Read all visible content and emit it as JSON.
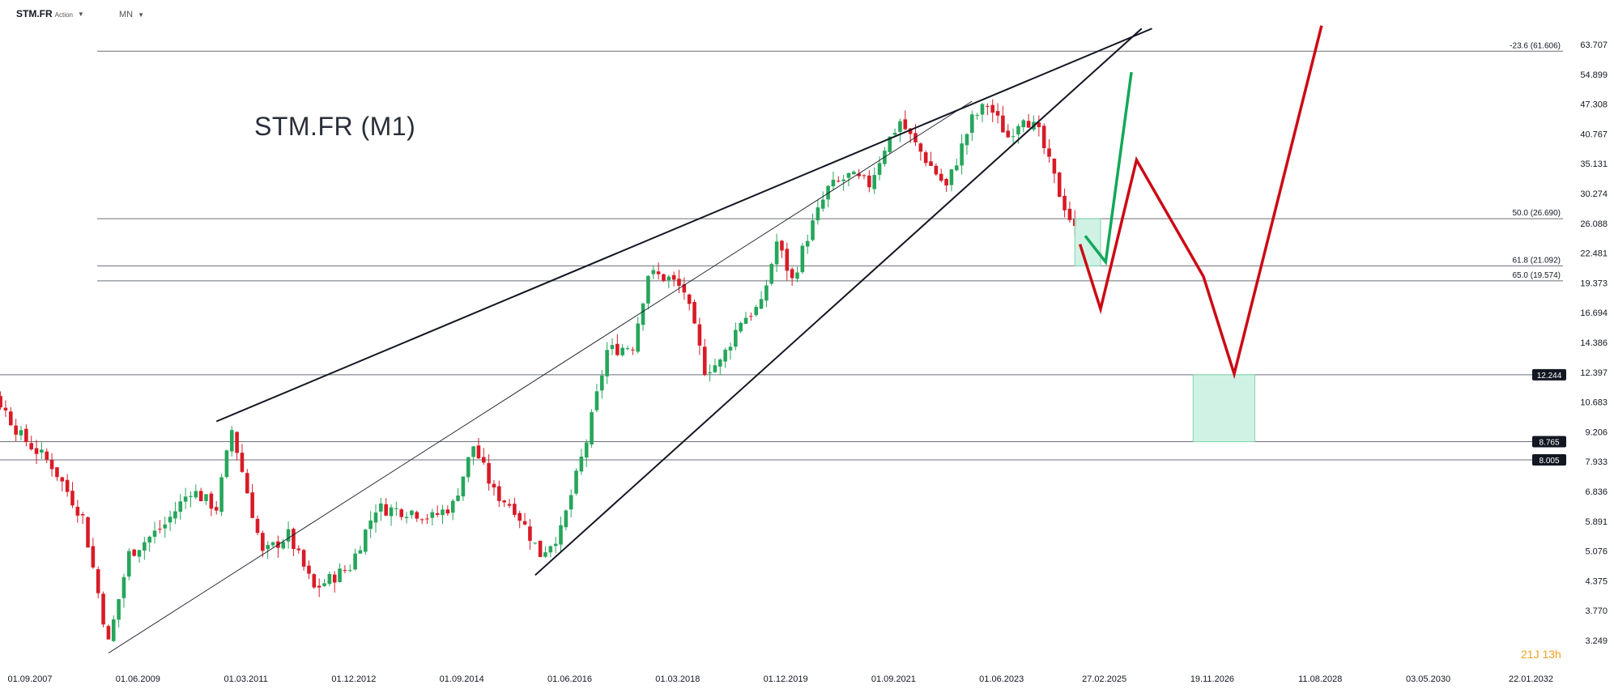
{
  "header": {
    "symbol": "STM.FR",
    "symbol_type": "Action",
    "interval": "MN"
  },
  "chart_title": "STM.FR (M1)",
  "countdown": "21J 13h",
  "colors": {
    "up": "#26a65b",
    "down": "#d81b27",
    "zone": "#c8f0e0",
    "zone_border": "#7fd6b0",
    "trend": "#131722",
    "projection_up": "#12a85a",
    "projection_down": "#cc0a14",
    "tag_bg": "#131722"
  },
  "chart_data": {
    "type": "candlestick",
    "y_scale": "log",
    "ylim": [
      3.0,
      72.0
    ],
    "x_tick_labels": [
      "01.09.2007",
      "01.06.2009",
      "01.03.2011",
      "01.12.2012",
      "01.09.2014",
      "01.06.2016",
      "01.03.2018",
      "01.12.2019",
      "01.09.2021",
      "01.06.2023",
      "27.02.2025",
      "19.11.2026",
      "11.08.2028",
      "03.05.2030",
      "22.01.2032"
    ],
    "y_tick_labels": [
      "63.707",
      "54.899",
      "47.308",
      "40.767",
      "35.131",
      "30.274",
      "26.088",
      "22.481",
      "19.373",
      "16.694",
      "14.386",
      "12.397",
      "10.683",
      "9.206",
      "7.933",
      "6.836",
      "5.891",
      "5.076",
      "4.375",
      "3.770",
      "3.249"
    ],
    "levels": [
      {
        "value": 61.606,
        "label": "-23.6 (61.606)",
        "kind": "fib"
      },
      {
        "value": 26.69,
        "label": "50.0 (26.690)",
        "kind": "fib"
      },
      {
        "value": 21.092,
        "label": "61.8 (21.092)",
        "kind": "fib"
      },
      {
        "value": 19.574,
        "label": "65.0 (19.574)",
        "kind": "fib"
      },
      {
        "value": 12.244,
        "label": "12.244",
        "kind": "tag"
      },
      {
        "value": 8.765,
        "label": "8.765",
        "kind": "tag"
      },
      {
        "value": 8.005,
        "label": "8.005",
        "kind": "tag"
      }
    ],
    "close_anchors": [
      [
        "2006-06",
        12.6
      ],
      [
        "2007-03",
        11.5
      ],
      [
        "2007-09",
        9.0
      ],
      [
        "2008-03",
        7.8
      ],
      [
        "2008-09",
        6.0
      ],
      [
        "2009-02",
        3.2
      ],
      [
        "2009-06",
        5.0
      ],
      [
        "2010-01",
        5.8
      ],
      [
        "2010-06",
        6.9
      ],
      [
        "2010-11",
        6.3
      ],
      [
        "2011-02",
        9.3
      ],
      [
        "2011-08",
        5.0
      ],
      [
        "2012-01",
        5.5
      ],
      [
        "2012-06",
        4.2
      ],
      [
        "2013-01",
        4.7
      ],
      [
        "2013-06",
        6.3
      ],
      [
        "2014-01",
        6.2
      ],
      [
        "2014-05",
        6.0
      ],
      [
        "2014-09",
        6.4
      ],
      [
        "2015-01",
        8.6
      ],
      [
        "2015-05",
        6.8
      ],
      [
        "2015-09",
        6.3
      ],
      [
        "2016-02",
        5.0
      ],
      [
        "2016-06",
        5.6
      ],
      [
        "2016-11",
        8.8
      ],
      [
        "2017-03",
        13.8
      ],
      [
        "2017-08",
        14.2
      ],
      [
        "2017-11",
        20.3
      ],
      [
        "2018-03",
        19.8
      ],
      [
        "2018-06",
        18.6
      ],
      [
        "2018-10",
        12.6
      ],
      [
        "2019-01",
        13.0
      ],
      [
        "2019-05",
        16.1
      ],
      [
        "2019-09",
        17.3
      ],
      [
        "2019-12",
        23.8
      ],
      [
        "2020-03",
        19.6
      ],
      [
        "2020-06",
        24.5
      ],
      [
        "2020-10",
        31.0
      ],
      [
        "2021-02",
        33.0
      ],
      [
        "2021-06",
        31.7
      ],
      [
        "2021-09",
        38.2
      ],
      [
        "2021-12",
        43.5
      ],
      [
        "2022-03",
        38.6
      ],
      [
        "2022-09",
        31.2
      ],
      [
        "2023-02",
        43.8
      ],
      [
        "2023-05",
        47.3
      ],
      [
        "2023-09",
        40.2
      ],
      [
        "2023-12",
        45.0
      ],
      [
        "2024-03",
        40.8
      ],
      [
        "2024-07",
        30.3
      ],
      [
        "2024-10",
        25.2
      ]
    ],
    "projections": [
      {
        "name": "",
        "color": "up",
        "points": [
          [
            "2024-12",
            24.5
          ],
          [
            "2025-04",
            21.5
          ],
          [
            "2025-09",
            55.5
          ]
        ]
      },
      {
        "name": "",
        "color": "down",
        "points": [
          [
            "2024-11",
            23.5
          ],
          [
            "2025-03",
            17.0
          ],
          [
            "2025-10",
            35.8
          ],
          [
            "2026-11",
            20.0
          ],
          [
            "2027-05",
            12.3
          ],
          [
            "2028-10",
            70.0
          ]
        ]
      }
    ],
    "zones": [
      {
        "from": "2024-10",
        "to": "2025-03",
        "high": 26.69,
        "low": 21.092
      },
      {
        "from": "2026-09",
        "to": "2027-09",
        "high": 12.244,
        "low": 8.765
      }
    ],
    "trendlines": [
      {
        "from": [
          "2010-11",
          9.7
        ],
        "to": [
          "2026-01",
          69.0
        ],
        "weight": "bold"
      },
      {
        "from": [
          "2016-01",
          4.5
        ],
        "to": [
          "2025-11",
          69.0
        ],
        "weight": "bold"
      },
      {
        "from": [
          "2009-02",
          3.05
        ],
        "to": [
          "2023-02",
          48.0
        ],
        "weight": "thin"
      }
    ]
  }
}
